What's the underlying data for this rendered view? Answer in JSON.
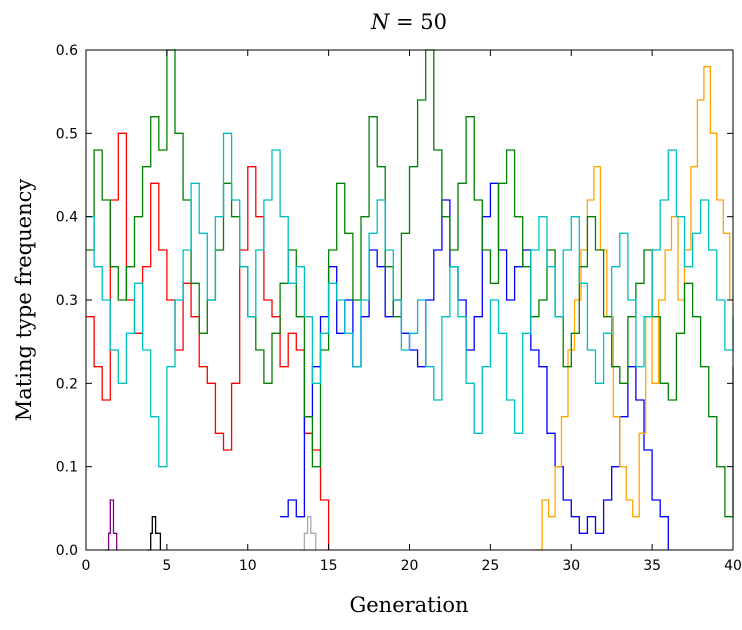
{
  "chart_data": {
    "type": "line",
    "title": "N = 50",
    "title_parts": {
      "var": "N",
      "rest": " = 50"
    },
    "xlabel": "Generation",
    "ylabel": "Mating type frequency",
    "xlim": [
      0,
      40
    ],
    "ylim": [
      0,
      0.6
    ],
    "xticks": [
      0,
      5,
      10,
      15,
      20,
      25,
      30,
      35,
      40
    ],
    "xtick_labels": [
      "0",
      "5",
      "10",
      "15",
      "20",
      "25",
      "30",
      "35",
      "40"
    ],
    "yticks": [
      0,
      0.1,
      0.2,
      0.3,
      0.4,
      0.5,
      0.6
    ],
    "ytick_labels": [
      "0.0",
      "0.1",
      "0.2",
      "0.3",
      "0.4",
      "0.5",
      "0.6"
    ],
    "grid": false,
    "legend": "none",
    "series": [
      {
        "color": "#ff0000",
        "x": [
          0.0,
          0.5,
          1.0,
          1.5,
          2.0,
          2.5,
          3.0,
          3.5,
          4.0,
          4.5,
          5.0,
          5.5,
          6.0,
          6.5,
          7.0,
          7.5,
          8.0,
          8.5,
          9.0,
          9.5,
          10.0,
          10.5,
          11.0,
          11.5,
          12.0,
          12.5,
          13.0,
          13.5,
          14.0,
          14.5,
          15.0
        ],
        "y": [
          0.28,
          0.22,
          0.18,
          0.42,
          0.5,
          0.3,
          0.26,
          0.34,
          0.44,
          0.36,
          0.3,
          0.24,
          0.32,
          0.28,
          0.22,
          0.2,
          0.14,
          0.12,
          0.2,
          0.36,
          0.46,
          0.4,
          0.3,
          0.28,
          0.22,
          0.26,
          0.24,
          0.14,
          0.12,
          0.06,
          0.0
        ]
      },
      {
        "color": "#800080",
        "x": [
          1.2,
          1.4,
          1.5,
          1.7,
          1.9
        ],
        "y": [
          0.0,
          0.02,
          0.06,
          0.02,
          0.0
        ]
      },
      {
        "color": "#000000",
        "x": [
          3.8,
          4.0,
          4.1,
          4.3,
          4.6
        ],
        "y": [
          0.0,
          0.02,
          0.04,
          0.02,
          0.0
        ]
      },
      {
        "color": "#a9a9a9",
        "x": [
          13.2,
          13.5,
          13.7,
          13.9,
          14.2
        ],
        "y": [
          0.0,
          0.02,
          0.04,
          0.02,
          0.0
        ]
      },
      {
        "color": "#0000ff",
        "x": [
          12.0,
          12.5,
          13.0,
          13.5,
          14.0,
          14.5,
          15.0,
          15.5,
          16.0,
          16.5,
          17.0,
          17.5,
          18.0,
          18.5,
          19.0,
          19.5,
          20.0,
          20.5,
          21.0,
          21.5,
          22.0,
          22.5,
          23.0,
          23.5,
          24.0,
          24.5,
          25.0,
          25.5,
          26.0,
          26.5,
          27.0,
          27.5,
          28.0,
          28.5,
          29.0,
          29.5,
          30.0,
          30.5,
          31.0,
          31.5,
          32.0,
          32.5,
          33.0,
          33.5,
          34.0,
          34.5,
          35.0,
          35.5,
          36.0
        ],
        "y": [
          0.04,
          0.06,
          0.04,
          0.16,
          0.22,
          0.28,
          0.34,
          0.26,
          0.3,
          0.22,
          0.28,
          0.36,
          0.34,
          0.28,
          0.3,
          0.26,
          0.24,
          0.22,
          0.3,
          0.36,
          0.42,
          0.34,
          0.3,
          0.24,
          0.28,
          0.4,
          0.44,
          0.36,
          0.3,
          0.34,
          0.36,
          0.24,
          0.22,
          0.14,
          0.1,
          0.06,
          0.04,
          0.02,
          0.04,
          0.02,
          0.06,
          0.1,
          0.16,
          0.22,
          0.18,
          0.12,
          0.06,
          0.04,
          0.0
        ]
      },
      {
        "color": "#ffa500",
        "x": [
          27.8,
          28.2,
          28.6,
          29.0,
          29.4,
          29.8,
          30.2,
          30.6,
          31.0,
          31.4,
          31.8,
          32.2,
          32.6,
          33.0,
          33.4,
          33.8,
          34.2,
          34.6,
          35.0,
          35.4,
          35.8,
          36.2,
          36.6,
          37.0,
          37.4,
          37.8,
          38.2,
          38.6,
          39.0,
          39.4,
          39.8
        ],
        "y": [
          0.0,
          0.06,
          0.04,
          0.1,
          0.16,
          0.24,
          0.3,
          0.36,
          0.42,
          0.46,
          0.36,
          0.28,
          0.16,
          0.1,
          0.06,
          0.04,
          0.14,
          0.28,
          0.2,
          0.3,
          0.36,
          0.4,
          0.3,
          0.36,
          0.46,
          0.54,
          0.58,
          0.5,
          0.42,
          0.38,
          0.3
        ]
      },
      {
        "color": "#008000",
        "x": [
          0.0,
          0.5,
          1.0,
          1.5,
          2.0,
          2.5,
          3.0,
          3.5,
          4.0,
          4.5,
          5.0,
          5.5,
          6.0,
          6.5,
          7.0,
          7.5,
          8.0,
          8.5,
          9.0,
          9.5,
          10.0,
          10.5,
          11.0,
          11.5,
          12.0,
          12.5,
          13.0,
          13.5,
          14.0,
          14.5,
          15.0,
          15.5,
          16.0,
          16.5,
          17.0,
          17.5,
          18.0,
          18.5,
          19.0,
          19.5,
          20.0,
          20.5,
          21.0,
          21.5,
          22.0,
          22.5,
          23.0,
          23.5,
          24.0,
          24.5,
          25.0,
          25.5,
          26.0,
          26.5,
          27.0,
          27.5,
          28.0,
          28.5,
          29.0,
          29.5,
          30.0,
          30.5,
          31.0,
          31.5,
          32.0,
          32.5,
          33.0,
          33.5,
          34.0,
          34.5,
          35.0,
          35.5,
          36.0,
          36.5,
          37.0,
          37.5,
          38.0,
          38.5,
          39.0,
          39.5,
          40.0
        ],
        "y": [
          0.36,
          0.48,
          0.42,
          0.34,
          0.3,
          0.34,
          0.4,
          0.46,
          0.52,
          0.48,
          0.6,
          0.5,
          0.42,
          0.32,
          0.26,
          0.3,
          0.36,
          0.44,
          0.4,
          0.34,
          0.28,
          0.24,
          0.2,
          0.26,
          0.32,
          0.36,
          0.28,
          0.16,
          0.1,
          0.24,
          0.36,
          0.44,
          0.38,
          0.3,
          0.4,
          0.52,
          0.46,
          0.34,
          0.28,
          0.38,
          0.46,
          0.54,
          0.6,
          0.48,
          0.4,
          0.36,
          0.44,
          0.52,
          0.42,
          0.36,
          0.32,
          0.44,
          0.48,
          0.4,
          0.34,
          0.28,
          0.3,
          0.36,
          0.28,
          0.22,
          0.26,
          0.34,
          0.4,
          0.36,
          0.28,
          0.22,
          0.2,
          0.28,
          0.32,
          0.36,
          0.28,
          0.2,
          0.18,
          0.26,
          0.32,
          0.28,
          0.22,
          0.16,
          0.1,
          0.04,
          0.22
        ]
      },
      {
        "color": "#00bfbf",
        "x": [
          0.0,
          0.5,
          1.0,
          1.5,
          2.0,
          2.5,
          3.0,
          3.5,
          4.0,
          4.5,
          5.0,
          5.5,
          6.0,
          6.5,
          7.0,
          7.5,
          8.0,
          8.5,
          9.0,
          9.5,
          10.0,
          10.5,
          11.0,
          11.5,
          12.0,
          12.5,
          13.0,
          13.5,
          14.0,
          14.5,
          15.0,
          15.5,
          16.0,
          16.5,
          17.0,
          17.5,
          18.0,
          18.5,
          19.0,
          19.5,
          20.0,
          20.5,
          21.0,
          21.5,
          22.0,
          22.5,
          23.0,
          23.5,
          24.0,
          24.5,
          25.0,
          25.5,
          26.0,
          26.5,
          27.0,
          27.5,
          28.0,
          28.5,
          29.0,
          29.5,
          30.0,
          30.5,
          31.0,
          31.5,
          32.0,
          32.5,
          33.0,
          33.5,
          34.0,
          34.5,
          35.0,
          35.5,
          36.0,
          36.5,
          37.0,
          37.5,
          38.0,
          38.5,
          39.0,
          39.5,
          40.0
        ],
        "y": [
          0.4,
          0.34,
          0.3,
          0.24,
          0.2,
          0.26,
          0.32,
          0.24,
          0.16,
          0.1,
          0.22,
          0.3,
          0.36,
          0.44,
          0.38,
          0.3,
          0.4,
          0.5,
          0.42,
          0.34,
          0.28,
          0.36,
          0.42,
          0.48,
          0.4,
          0.32,
          0.34,
          0.28,
          0.2,
          0.26,
          0.32,
          0.3,
          0.26,
          0.22,
          0.3,
          0.38,
          0.42,
          0.36,
          0.3,
          0.24,
          0.26,
          0.3,
          0.22,
          0.18,
          0.28,
          0.34,
          0.28,
          0.2,
          0.14,
          0.22,
          0.3,
          0.26,
          0.18,
          0.14,
          0.26,
          0.36,
          0.4,
          0.34,
          0.28,
          0.36,
          0.4,
          0.32,
          0.24,
          0.2,
          0.26,
          0.34,
          0.38,
          0.3,
          0.22,
          0.28,
          0.36,
          0.42,
          0.48,
          0.4,
          0.34,
          0.38,
          0.42,
          0.36,
          0.3,
          0.24,
          0.28
        ]
      }
    ]
  }
}
